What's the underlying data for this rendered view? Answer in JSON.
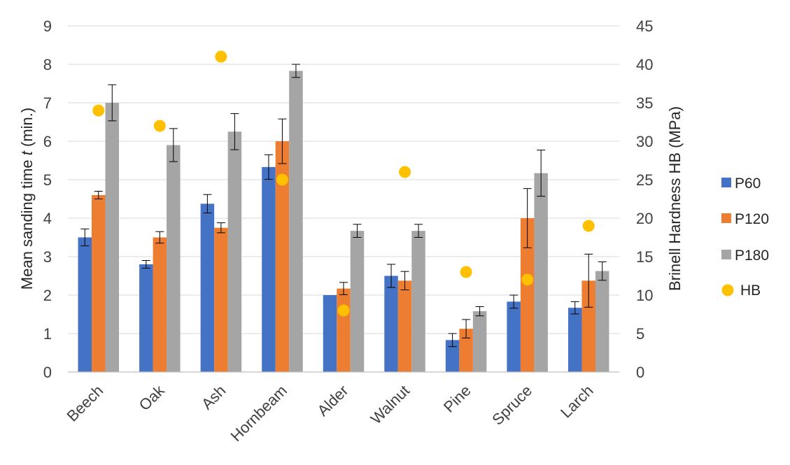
{
  "chart_data": {
    "type": "bar",
    "title": "",
    "categories": [
      "Beech",
      "Oak",
      "Ash",
      "Hornbeam",
      "Alder",
      "Walnut",
      "Pine",
      "Spruce",
      "Larch"
    ],
    "series": [
      {
        "name": "P60",
        "color": "#4472C4",
        "axis": "left",
        "values": [
          3.5,
          2.8,
          4.375,
          5.33,
          2.0,
          2.5,
          0.83,
          1.83,
          1.67
        ],
        "errors": [
          0.22,
          0.1,
          0.24,
          0.32,
          0.0,
          0.3,
          0.17,
          0.17,
          0.16
        ]
      },
      {
        "name": "P120",
        "color": "#ED7D31",
        "axis": "left",
        "values": [
          4.6,
          3.5,
          3.75,
          6.0,
          2.17,
          2.375,
          1.125,
          4.0,
          2.375
        ],
        "errors": [
          0.1,
          0.15,
          0.13,
          0.58,
          0.16,
          0.24,
          0.24,
          0.77,
          0.69
        ]
      },
      {
        "name": "P180",
        "color": "#A5A5A5",
        "axis": "left",
        "values": [
          7.0,
          5.9,
          6.25,
          7.83,
          3.67,
          3.67,
          1.58,
          5.17,
          2.625
        ],
        "errors": [
          0.47,
          0.43,
          0.47,
          0.17,
          0.17,
          0.17,
          0.12,
          0.6,
          0.24
        ]
      },
      {
        "name": "HB",
        "color": "#FFC000",
        "axis": "right",
        "kind": "scatter",
        "values": [
          34,
          32,
          41,
          25,
          8,
          26,
          13,
          12,
          19
        ]
      }
    ],
    "ylabel_parts": [
      "Mean sanding time ",
      "t",
      " (min.)"
    ],
    "y2label": "Brinell Hardness HB (MPa)",
    "ylim": [
      0,
      9
    ],
    "yticks": [
      "0",
      "1",
      "2",
      "3",
      "4",
      "5",
      "6",
      "7",
      "8",
      "9"
    ],
    "y2lim": [
      0,
      45
    ],
    "y2ticks": [
      "0",
      "5",
      "10",
      "15",
      "20",
      "25",
      "30",
      "35",
      "40",
      "45"
    ],
    "grid": true,
    "legend_position": "right"
  }
}
